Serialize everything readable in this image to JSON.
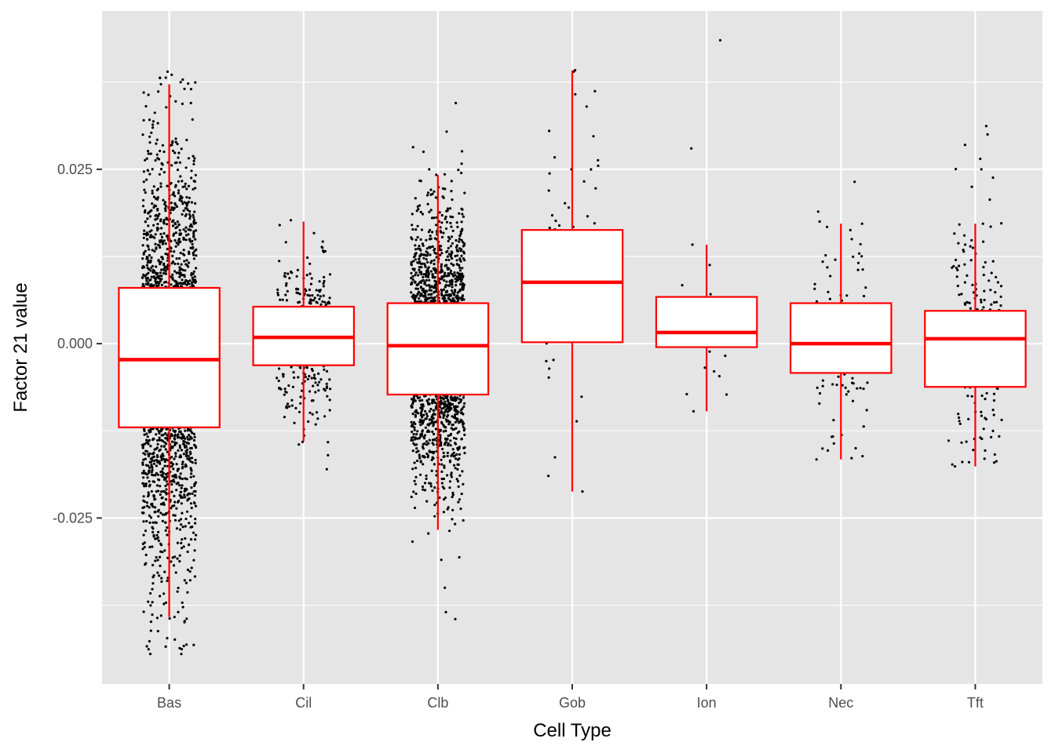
{
  "chart_data": {
    "type": "box",
    "title": "",
    "xlabel": "Cell Type",
    "ylabel": "Factor 21 value",
    "categories": [
      "Bas",
      "Cil",
      "Clb",
      "Gob",
      "Ion",
      "Nec",
      "Tft"
    ],
    "ylim": [
      -0.0488,
      0.0477
    ],
    "yticks": [
      -0.025,
      0.0,
      0.025
    ],
    "ytick_labels": [
      "-0.025",
      "0.000",
      "0.025"
    ],
    "grid": true,
    "legend": "none",
    "colors": {
      "panel": "#e5e5e5",
      "grid": "#ffffff",
      "box": "#ff0000",
      "box_fill": "#ffffff",
      "points": "#000000"
    },
    "boxes": [
      {
        "category": "Bas",
        "whisker_low": -0.0392,
        "q1": -0.012,
        "median": -0.0023,
        "q3": 0.008,
        "whisker_high": 0.0372
      },
      {
        "category": "Cil",
        "whisker_low": -0.014,
        "q1": -0.0031,
        "median": 0.0009,
        "q3": 0.0053,
        "whisker_high": 0.0175
      },
      {
        "category": "Clb",
        "whisker_low": -0.0267,
        "q1": -0.0073,
        "median": -0.0003,
        "q3": 0.0058,
        "whisker_high": 0.0242
      },
      {
        "category": "Gob",
        "whisker_low": -0.0212,
        "q1": 0.0002,
        "median": 0.0088,
        "q3": 0.0163,
        "whisker_high": 0.0392
      },
      {
        "category": "Ion",
        "whisker_low": -0.0097,
        "q1": -0.0005,
        "median": 0.0016,
        "q3": 0.0067,
        "whisker_high": 0.0142
      },
      {
        "category": "Nec",
        "whisker_low": -0.0166,
        "q1": -0.0042,
        "median": 0.0,
        "q3": 0.0058,
        "whisker_high": 0.0172
      },
      {
        "category": "Tft",
        "whisker_low": -0.0176,
        "q1": -0.0062,
        "median": 0.0007,
        "q3": 0.0047,
        "whisker_high": 0.0172
      }
    ],
    "point_groups": [
      {
        "category": "Bas",
        "count": 2400,
        "sd": 0.014,
        "min": -0.0445,
        "max": 0.039,
        "extremes": [
          0.039,
          0.0375,
          0.0372,
          0.0365,
          0.036,
          -0.037,
          -0.0385,
          -0.0392,
          -0.0445
        ]
      },
      {
        "category": "Cil",
        "count": 450,
        "sd": 0.0052,
        "min": -0.018,
        "max": 0.0177,
        "extremes": [
          0.0177,
          0.017,
          -0.016,
          -0.018
        ]
      },
      {
        "category": "Clb",
        "count": 2200,
        "sd": 0.0092,
        "min": -0.0395,
        "max": 0.0345,
        "extremes": [
          0.0345,
          0.0258,
          0.0242,
          -0.031,
          -0.035,
          -0.0385,
          -0.0395
        ]
      },
      {
        "category": "Gob",
        "count": 60,
        "sd": 0.011,
        "min": -0.0212,
        "max": 0.0392,
        "extremes": [
          0.0392,
          0.039,
          0.0362,
          0.034,
          0.0305,
          0.0255,
          0.025,
          -0.0163,
          -0.0212
        ]
      },
      {
        "category": "Ion",
        "count": 24,
        "sd": 0.006,
        "min": -0.0097,
        "max": 0.0435,
        "extremes": [
          0.0435,
          0.028,
          0.0142,
          -0.0073,
          -0.0097
        ]
      },
      {
        "category": "Nec",
        "count": 120,
        "sd": 0.0075,
        "min": -0.0166,
        "max": 0.0232,
        "extremes": [
          0.0232,
          0.0175,
          0.0172,
          -0.015,
          -0.0166
        ]
      },
      {
        "category": "Tft",
        "count": 260,
        "sd": 0.008,
        "min": -0.0176,
        "max": 0.0312,
        "extremes": [
          0.0312,
          0.03,
          0.0285,
          0.0265,
          0.025,
          0.0238,
          0.0225,
          -0.017,
          -0.0176
        ]
      }
    ]
  }
}
